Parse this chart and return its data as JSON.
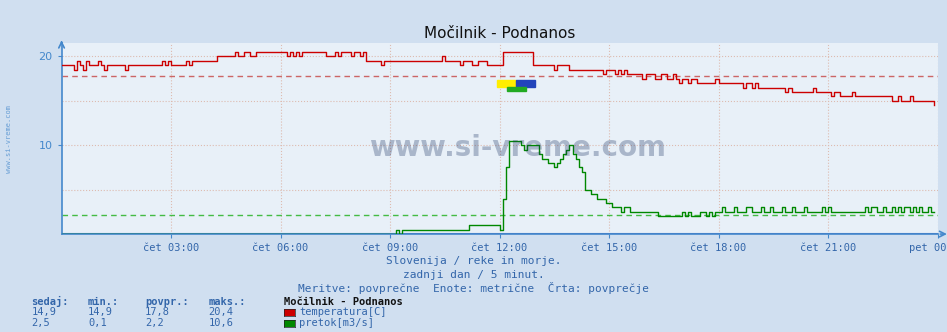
{
  "title": "Močilnik - Podnanos",
  "bg_color": "#d0dff0",
  "plot_bg_color": "#e8f0f8",
  "grid_color_minor": "#ddbbb0",
  "axis_color": "#4488cc",
  "text_color": "#3366aa",
  "ylim": [
    0,
    21.5
  ],
  "yticks": [
    10,
    20
  ],
  "num_points": 288,
  "temp_avg_line": 17.8,
  "flow_avg_line": 2.2,
  "subtitle1": "Slovenija / reke in morje.",
  "subtitle2": "zadnji dan / 5 minut.",
  "subtitle3": "Meritve: povprečne  Enote: metrične  Črta: povprečje",
  "legend_title": "Močilnik - Podnanos",
  "legend_items": [
    {
      "label": "temperatura[C]",
      "color": "#cc0000"
    },
    {
      "label": "pretok[m3/s]",
      "color": "#008800"
    }
  ],
  "table_headers": [
    "sedaj:",
    "min.:",
    "povpr.:",
    "maks.:"
  ],
  "table_rows": [
    [
      "14,9",
      "14,9",
      "17,8",
      "20,4"
    ],
    [
      "2,5",
      "0,1",
      "2,2",
      "10,6"
    ]
  ],
  "xtick_labels": [
    "čet 03:00",
    "čet 06:00",
    "čet 09:00",
    "čet 12:00",
    "čet 15:00",
    "čet 18:00",
    "čet 21:00",
    "pet 00:00"
  ],
  "xtick_positions": [
    36,
    72,
    108,
    144,
    180,
    216,
    252,
    288
  ],
  "watermark": "www.si-vreme.com",
  "watermark_color": "#1a3060",
  "left_label": "www.si-vreme.com",
  "temp_color": "#cc0000",
  "flow_color": "#008800",
  "blue_line_color": "#4466bb",
  "dashed_color_temp": "#cc6666",
  "dashed_color_flow": "#44bb44",
  "logo_yellow": "#ffee00",
  "logo_blue": "#2244bb",
  "logo_green": "#22aa22"
}
